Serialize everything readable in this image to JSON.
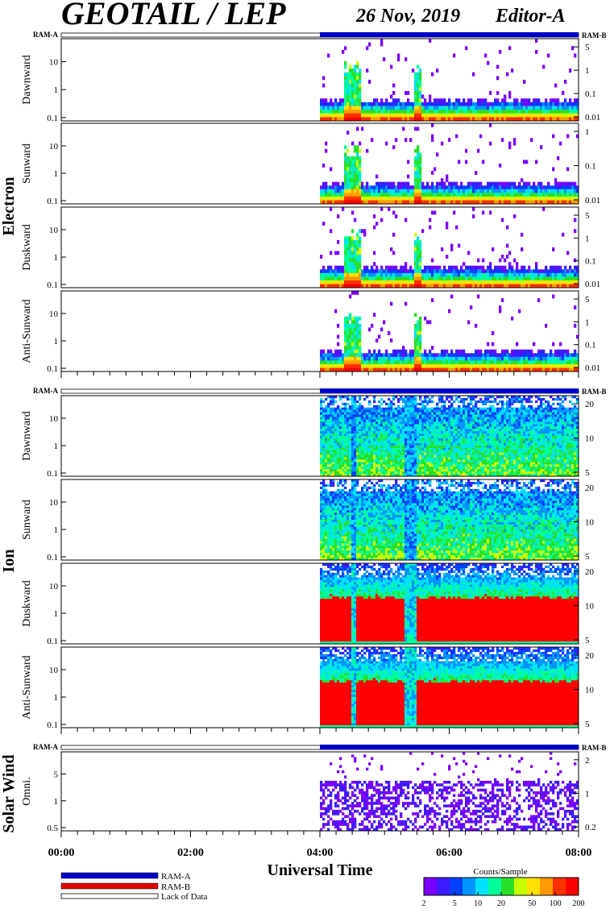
{
  "header": {
    "title": "GEOTAIL / LEP",
    "date": "26 Nov, 2019",
    "editor": "Editor-A"
  },
  "ram_labels": {
    "left": "RAM-A",
    "right": "RAM-B"
  },
  "groups": [
    {
      "label": "Electron"
    },
    {
      "label": "Ion"
    },
    {
      "label": "Solar Wind"
    }
  ],
  "chart_data": {
    "type": "heatmap",
    "x_label": "Universal Time",
    "x_ticks": [
      "00:00",
      "02:00",
      "04:00",
      "06:00",
      "08:00"
    ],
    "x_range_hours": [
      0,
      8
    ],
    "data_start_hour": 4.0,
    "panels": [
      {
        "group": "Electron",
        "ylabel": "Dawnward",
        "left_ticks": [
          "10",
          "1",
          "0.1"
        ],
        "right_ticks": [
          "5",
          "1",
          "0.1",
          "0.01"
        ],
        "kind": "electron"
      },
      {
        "group": "Electron",
        "ylabel": "Sunward",
        "left_ticks": [
          "10",
          "1",
          "0.1"
        ],
        "right_ticks": [
          "1",
          "0.1",
          "0.01"
        ],
        "kind": "electron"
      },
      {
        "group": "Electron",
        "ylabel": "Duskward",
        "left_ticks": [
          "10",
          "1",
          "0.1"
        ],
        "right_ticks": [
          "5",
          "1",
          "0.1",
          "0.01"
        ],
        "kind": "electron"
      },
      {
        "group": "Electron",
        "ylabel": "Anti-Sunward",
        "left_ticks": [
          "10",
          "1",
          "0.1"
        ],
        "right_ticks": [
          "5",
          "1",
          "0.1",
          "0.01"
        ],
        "kind": "electron"
      },
      {
        "group": "Ion",
        "ylabel": "Dawnward",
        "left_ticks": [
          "10",
          "1",
          "0.1"
        ],
        "right_ticks": [
          "20",
          "10",
          "5"
        ],
        "kind": "ion-low"
      },
      {
        "group": "Ion",
        "ylabel": "Sunward",
        "left_ticks": [
          "10",
          "1",
          "0.1"
        ],
        "right_ticks": [
          "20",
          "10",
          "5"
        ],
        "kind": "ion-low"
      },
      {
        "group": "Ion",
        "ylabel": "Duskward",
        "left_ticks": [
          "10",
          "1",
          "0.1"
        ],
        "right_ticks": [
          "20",
          "10",
          "5"
        ],
        "kind": "ion-high"
      },
      {
        "group": "Ion",
        "ylabel": "Anti-Sunward",
        "left_ticks": [
          "10",
          "1",
          "0.1"
        ],
        "right_ticks": [
          "20",
          "10",
          "5"
        ],
        "kind": "ion-high"
      },
      {
        "group": "Solar Wind",
        "ylabel": "Omni.",
        "left_ticks": [
          "5",
          "1",
          "0.5"
        ],
        "right_ticks": [
          "2",
          "1",
          "0.2"
        ],
        "kind": "solar"
      }
    ],
    "colorbar": {
      "title": "Counts/Sample",
      "ticks": [
        "2",
        "5",
        "10",
        "20",
        "50",
        "100",
        "200"
      ],
      "scale": "log",
      "colors": [
        "#7a00ff",
        "#3b1cff",
        "#0040ff",
        "#0094ff",
        "#00e0ff",
        "#00ff9a",
        "#28e028",
        "#c8ff00",
        "#ffe000",
        "#ff9a00",
        "#ff3000",
        "#ff0000"
      ]
    }
  },
  "legend": {
    "items": [
      {
        "label": "RAM-A",
        "color": "#0000c8"
      },
      {
        "label": "RAM-B",
        "color": "#e00000"
      },
      {
        "label": "Lack of Data",
        "color": "#ffffff"
      }
    ]
  }
}
